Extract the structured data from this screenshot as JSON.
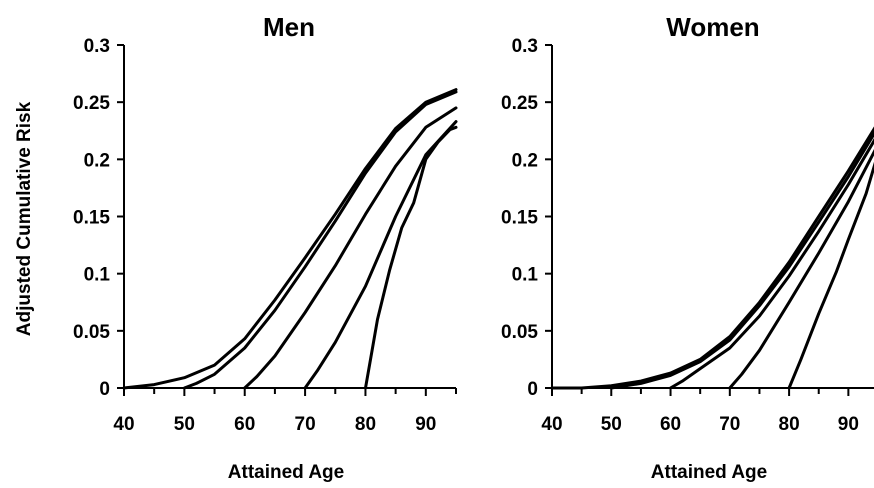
{
  "chart_data": [
    {
      "type": "line",
      "title": "Men",
      "xlabel": "Attained Age",
      "ylabel": "Adjusted Cumulative Risk",
      "xlim": [
        40,
        95
      ],
      "ylim": [
        0,
        0.3
      ],
      "x_ticks": [
        "40",
        "50",
        "60",
        "70",
        "80",
        "90"
      ],
      "y_ticks": [
        "0",
        "0.05",
        "0.1",
        "0.15",
        "0.2",
        "0.25",
        "0.3"
      ],
      "series": [
        {
          "x": [
            40,
            45,
            50,
            55,
            60,
            65,
            70,
            75,
            80,
            85,
            90,
            95
          ],
          "y": [
            0,
            0.003,
            0.009,
            0.02,
            0.043,
            0.077,
            0.114,
            0.152,
            0.192,
            0.227,
            0.25,
            0.261
          ]
        },
        {
          "x": [
            50,
            52,
            55,
            60,
            65,
            70,
            75,
            80,
            85,
            90,
            95
          ],
          "y": [
            0,
            0.004,
            0.012,
            0.035,
            0.068,
            0.106,
            0.146,
            0.188,
            0.224,
            0.248,
            0.259
          ]
        },
        {
          "x": [
            60,
            62,
            65,
            70,
            75,
            80,
            85,
            90,
            95
          ],
          "y": [
            0,
            0.01,
            0.028,
            0.066,
            0.107,
            0.152,
            0.194,
            0.228,
            0.245
          ]
        },
        {
          "x": [
            70,
            72,
            75,
            80,
            85,
            90,
            95
          ],
          "y": [
            0,
            0.015,
            0.04,
            0.089,
            0.15,
            0.204,
            0.233
          ]
        },
        {
          "x": [
            80,
            81,
            82,
            84,
            86,
            88,
            90,
            92,
            94,
            95
          ],
          "y": [
            0,
            0.03,
            0.06,
            0.103,
            0.14,
            0.162,
            0.2,
            0.215,
            0.226,
            0.228
          ]
        }
      ]
    },
    {
      "type": "line",
      "title": "Women",
      "xlabel": "Attained Age",
      "ylabel": "",
      "xlim": [
        40,
        95
      ],
      "ylim": [
        0,
        0.3
      ],
      "x_ticks": [
        "40",
        "50",
        "60",
        "70",
        "80",
        "90"
      ],
      "y_ticks": [
        "0",
        "0.05",
        "0.1",
        "0.15",
        "0.2",
        "0.25",
        "0.3"
      ],
      "series": [
        {
          "x": [
            40,
            45,
            50,
            55,
            60,
            65,
            70,
            75,
            80,
            85,
            90,
            95
          ],
          "y": [
            0,
            0,
            0.002,
            0.006,
            0.013,
            0.025,
            0.045,
            0.075,
            0.11,
            0.15,
            0.19,
            0.232
          ]
        },
        {
          "x": [
            50,
            55,
            60,
            65,
            70,
            75,
            80,
            85,
            90,
            95
          ],
          "y": [
            0,
            0.004,
            0.011,
            0.023,
            0.042,
            0.072,
            0.106,
            0.145,
            0.185,
            0.228
          ]
        },
        {
          "x": [
            60,
            62,
            65,
            70,
            75,
            80,
            85,
            90,
            95
          ],
          "y": [
            0,
            0.006,
            0.017,
            0.035,
            0.063,
            0.098,
            0.137,
            0.178,
            0.222
          ]
        },
        {
          "x": [
            70,
            72,
            75,
            80,
            85,
            90,
            95
          ],
          "y": [
            0,
            0.012,
            0.033,
            0.075,
            0.118,
            0.163,
            0.213
          ]
        },
        {
          "x": [
            80,
            82,
            85,
            88,
            90,
            93,
            95
          ],
          "y": [
            0,
            0.025,
            0.065,
            0.102,
            0.13,
            0.17,
            0.205
          ]
        }
      ]
    }
  ]
}
